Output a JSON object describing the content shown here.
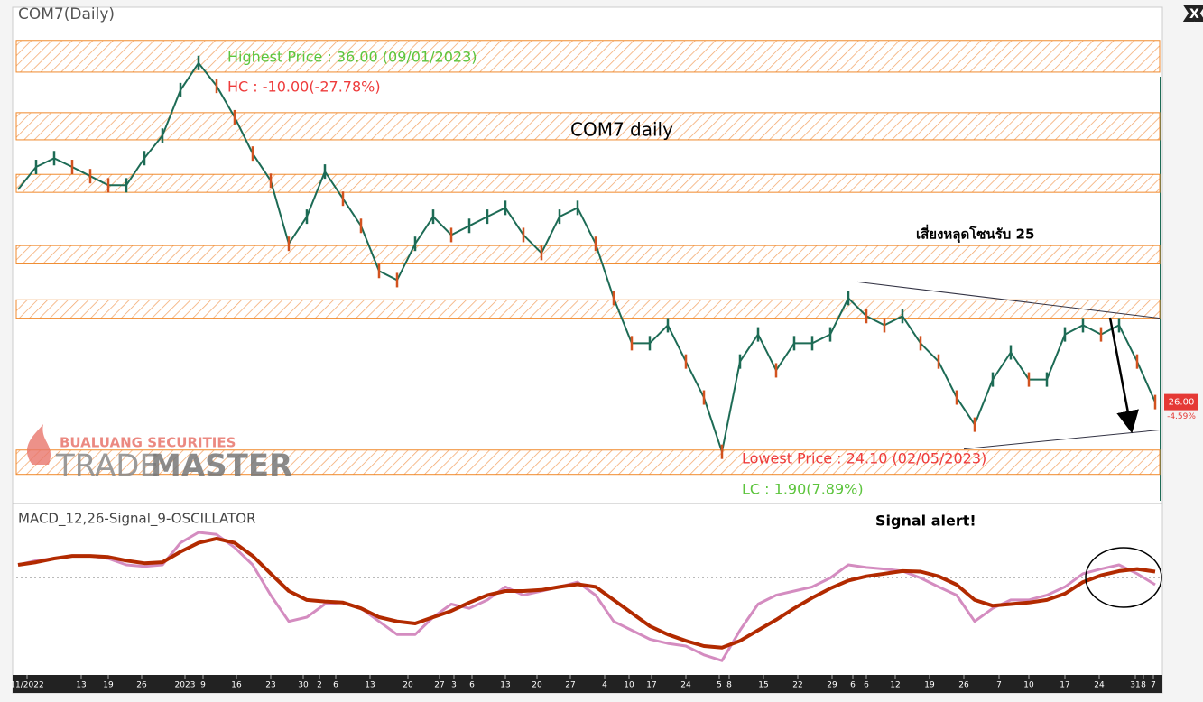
{
  "window": {
    "close_button": "X",
    "brand_top": "BUALUANG SECURITIES",
    "brand_light": "TRADE",
    "brand_bold": "MASTER"
  },
  "chart_data": [
    {
      "type": "line",
      "title": "COM7(Daily)",
      "color": "#1d6b55",
      "values": [
        32.03,
        32.67,
        32.92,
        32.67,
        32.41,
        32.15,
        32.15,
        32.92,
        33.56,
        34.85,
        35.62,
        34.97,
        34.08,
        33.05,
        32.28,
        30.49,
        31.26,
        32.54,
        31.77,
        31.0,
        29.72,
        29.46,
        30.49,
        31.26,
        30.74,
        31.0,
        31.26,
        31.51,
        30.74,
        30.23,
        31.26,
        31.51,
        30.49,
        28.95,
        27.67,
        27.67,
        28.18,
        27.15,
        26.13,
        24.59,
        27.15,
        27.92,
        26.9,
        27.67,
        27.67,
        27.92,
        28.95,
        28.44,
        28.18,
        28.44,
        27.67,
        27.15,
        26.13,
        25.36,
        26.64,
        27.41,
        26.64,
        26.64,
        27.92,
        28.18,
        27.92,
        28.18,
        27.15,
        26.0
      ],
      "xlim": [
        -0.1,
        63.25
      ],
      "ylim": [
        23.2,
        37.15
      ],
      "zones": [
        [
          35.36,
          36.26
        ],
        [
          33.44,
          34.21
        ],
        [
          31.95,
          32.46
        ],
        [
          29.92,
          30.44
        ],
        [
          28.38,
          28.9
        ],
        [
          23.95,
          24.64
        ]
      ],
      "zone_color": "#f08a2c",
      "trendlines": [
        {
          "x": [
            46.5,
            63.25
          ],
          "y": [
            29.41,
            28.38
          ]
        },
        {
          "x": [
            52.4,
            63.25
          ],
          "y": [
            24.67,
            25.21
          ]
        }
      ],
      "price_tag": {
        "value": 26.0,
        "label": "26.00",
        "change": "-4.59%"
      },
      "annotations": {
        "highest": "Highest Price : 36.00 (09/01/2023)",
        "hc": "HC : -10.00(-27.78%)",
        "label": "COM7 daily",
        "warning": "เสี่ยงหลุดโซนรับ 25",
        "lowest": "Lowest Price : 24.10 (02/05/2023)",
        "lc": "LC : 1.90(7.89%)"
      }
    },
    {
      "type": "line",
      "title": "MACD_12,26-Signal_9-OSCILLATOR",
      "annotation": "Signal alert!",
      "xlim": [
        -0.1,
        63.25
      ],
      "ylim": [
        -1.8,
        1.3
      ],
      "series": [
        {
          "color": "#d48cc0",
          "values": [
            0.25,
            0.33,
            0.37,
            0.42,
            0.42,
            0.37,
            0.25,
            0.22,
            0.25,
            0.67,
            0.87,
            0.83,
            0.58,
            0.25,
            -0.33,
            -0.83,
            -0.75,
            -0.5,
            -0.47,
            -0.58,
            -0.83,
            -1.08,
            -1.08,
            -0.75,
            -0.5,
            -0.58,
            -0.42,
            -0.17,
            -0.33,
            -0.25,
            -0.17,
            -0.08,
            -0.33,
            -0.83,
            -1.0,
            -1.17,
            -1.25,
            -1.3,
            -1.47,
            -1.58,
            -1.0,
            -0.5,
            -0.33,
            -0.25,
            -0.17,
            0,
            0.25,
            0.2,
            0.17,
            0.13,
            0,
            -0.17,
            -0.33,
            -0.83,
            -0.58,
            -0.42,
            -0.42,
            -0.33,
            -0.17,
            0.08,
            0.17,
            0.25,
            0.08,
            -0.13
          ]
        },
        {
          "color": "#b22a00",
          "values": [
            0.25,
            0.3,
            0.37,
            0.42,
            0.42,
            0.4,
            0.33,
            0.28,
            0.3,
            0.5,
            0.67,
            0.75,
            0.67,
            0.42,
            0.08,
            -0.25,
            -0.42,
            -0.45,
            -0.47,
            -0.58,
            -0.75,
            -0.83,
            -0.87,
            -0.75,
            -0.63,
            -0.47,
            -0.33,
            -0.25,
            -0.25,
            -0.23,
            -0.17,
            -0.12,
            -0.17,
            -0.42,
            -0.67,
            -0.92,
            -1.08,
            -1.2,
            -1.3,
            -1.33,
            -1.2,
            -1.0,
            -0.8,
            -0.58,
            -0.38,
            -0.2,
            -0.05,
            0.03,
            0.08,
            0.13,
            0.12,
            0.03,
            -0.13,
            -0.42,
            -0.53,
            -0.5,
            -0.47,
            -0.42,
            -0.3,
            -0.08,
            0.05,
            0.13,
            0.17,
            0.12
          ]
        }
      ],
      "xticks": [
        {
          "value": 0.5,
          "label": "11/2022"
        },
        {
          "value": 3.5,
          "label": "13"
        },
        {
          "value": 5,
          "label": "19"
        },
        {
          "value": 6.85,
          "label": "26"
        },
        {
          "value": 9.25,
          "label": "2023"
        },
        {
          "value": 10.25,
          "label": "9"
        },
        {
          "value": 12.1,
          "label": "16"
        },
        {
          "value": 14,
          "label": "23"
        },
        {
          "value": 15.8,
          "label": "30"
        },
        {
          "value": 16.7,
          "label": "2"
        },
        {
          "value": 17.6,
          "label": "6"
        },
        {
          "value": 19.5,
          "label": "13"
        },
        {
          "value": 21.6,
          "label": "20"
        },
        {
          "value": 23.35,
          "label": "27"
        },
        {
          "value": 24.15,
          "label": "3"
        },
        {
          "value": 25.15,
          "label": "6"
        },
        {
          "value": 27,
          "label": "13"
        },
        {
          "value": 28.75,
          "label": "20"
        },
        {
          "value": 30.6,
          "label": "27"
        },
        {
          "value": 32.5,
          "label": "4"
        },
        {
          "value": 33.85,
          "label": "10"
        },
        {
          "value": 35.1,
          "label": "17"
        },
        {
          "value": 37,
          "label": "24"
        },
        {
          "value": 38.85,
          "label": "5"
        },
        {
          "value": 39.4,
          "label": "8"
        },
        {
          "value": 41.3,
          "label": "15"
        },
        {
          "value": 43.2,
          "label": "22"
        },
        {
          "value": 45.1,
          "label": "29"
        },
        {
          "value": 46.25,
          "label": "6"
        },
        {
          "value": 47,
          "label": "6"
        },
        {
          "value": 48.6,
          "label": "12"
        },
        {
          "value": 50.5,
          "label": "19"
        },
        {
          "value": 52.4,
          "label": "26"
        },
        {
          "value": 54.35,
          "label": "7"
        },
        {
          "value": 56,
          "label": "10"
        },
        {
          "value": 58,
          "label": "17"
        },
        {
          "value": 59.9,
          "label": "24"
        },
        {
          "value": 61.9,
          "label": "31"
        },
        {
          "value": 62.35,
          "label": "8"
        },
        {
          "value": 62.9,
          "label": "7"
        }
      ]
    }
  ]
}
